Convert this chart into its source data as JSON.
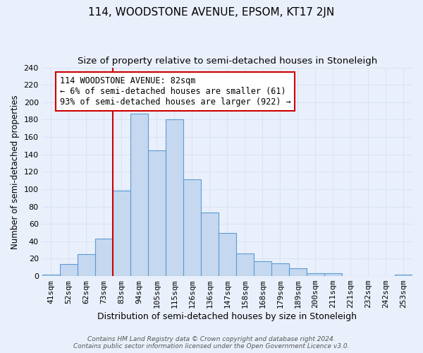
{
  "title": "114, WOODSTONE AVENUE, EPSOM, KT17 2JN",
  "subtitle": "Size of property relative to semi-detached houses in Stoneleigh",
  "xlabel": "Distribution of semi-detached houses by size in Stoneleigh",
  "ylabel": "Number of semi-detached properties",
  "bar_labels": [
    "41sqm",
    "52sqm",
    "62sqm",
    "73sqm",
    "83sqm",
    "94sqm",
    "105sqm",
    "115sqm",
    "126sqm",
    "136sqm",
    "147sqm",
    "158sqm",
    "168sqm",
    "179sqm",
    "189sqm",
    "200sqm",
    "211sqm",
    "221sqm",
    "232sqm",
    "242sqm",
    "253sqm"
  ],
  "bar_values": [
    2,
    14,
    25,
    43,
    98,
    187,
    145,
    180,
    111,
    73,
    50,
    26,
    17,
    15,
    9,
    3,
    3,
    0,
    0,
    0,
    2
  ],
  "bar_color": "#c5d8f0",
  "bar_edge_color": "#5b9bd5",
  "annotation_title": "114 WOODSTONE AVENUE: 82sqm",
  "annotation_line1": "← 6% of semi-detached houses are smaller (61)",
  "annotation_line2": "93% of semi-detached houses are larger (922) →",
  "annotation_box_color": "#ffffff",
  "annotation_box_edge": "#cc0000",
  "vline_color": "#cc0000",
  "vline_x_index": 4,
  "ylim": [
    0,
    240
  ],
  "yticks": [
    0,
    20,
    40,
    60,
    80,
    100,
    120,
    140,
    160,
    180,
    200,
    220,
    240
  ],
  "background_color": "#eaf0fb",
  "grid_color": "#d8e4f5",
  "footer": "Contains HM Land Registry data © Crown copyright and database right 2024.\nContains public sector information licensed under the Open Government Licence v3.0.",
  "title_fontsize": 11,
  "subtitle_fontsize": 9.5,
  "xlabel_fontsize": 9,
  "ylabel_fontsize": 8.5,
  "tick_fontsize": 8,
  "annotation_fontsize": 8.5,
  "footer_fontsize": 6.5
}
